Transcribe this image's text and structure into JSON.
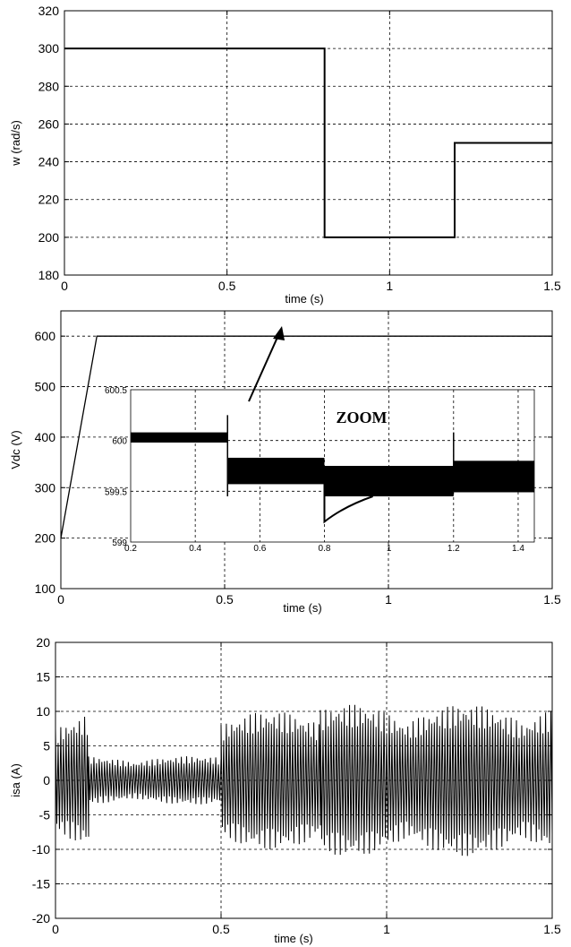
{
  "chart_data": [
    {
      "type": "line",
      "title": "",
      "xlabel": "time (s)",
      "ylabel": "w (rad/s)",
      "xlim": [
        0,
        1.5
      ],
      "ylim": [
        180,
        320
      ],
      "xticks": [
        "0",
        "0.5",
        "1",
        "1.5"
      ],
      "yticks": [
        "180",
        "200",
        "220",
        "240",
        "260",
        "280",
        "300",
        "320"
      ],
      "grid": true,
      "series": [
        {
          "x": [
            0,
            0.8,
            0.8,
            1.2,
            1.2,
            1.5
          ],
          "y": [
            300,
            300,
            200,
            200,
            250,
            250
          ]
        }
      ]
    },
    {
      "type": "line",
      "title": "",
      "xlabel": "time (s)",
      "ylabel": "Vdc (V)",
      "xlim": [
        0,
        1.5
      ],
      "ylim": [
        100,
        650
      ],
      "xticks": [
        "0",
        "0.5",
        "1",
        "1.5"
      ],
      "yticks": [
        "100",
        "200",
        "300",
        "400",
        "500",
        "600"
      ],
      "grid": true,
      "series": [
        {
          "x": [
            0,
            0.11,
            1.5
          ],
          "y": [
            200,
            600,
            600
          ]
        }
      ],
      "inset": {
        "annotation": "ZOOM",
        "xlim": [
          0.2,
          1.45
        ],
        "ylim": [
          599,
          600.5
        ],
        "xticks": [
          "0.2",
          "0.4",
          "0.6",
          "0.8",
          "1",
          "1.2",
          "1.4"
        ],
        "yticks": [
          "599",
          "599.5",
          "600",
          "600.5"
        ],
        "segments": [
          {
            "x": [
              0.2,
              0.5
            ],
            "low": 599.98,
            "high": 600.08
          },
          {
            "x": [
              0.5,
              0.8
            ],
            "low": 599.57,
            "high": 599.83
          },
          {
            "x": [
              0.8,
              1.2
            ],
            "low": 599.45,
            "high": 599.75
          },
          {
            "x": [
              1.2,
              1.45
            ],
            "low": 599.49,
            "high": 599.8
          }
        ]
      }
    },
    {
      "type": "line",
      "title": "",
      "xlabel": "time (s)",
      "ylabel": "isa (A)",
      "xlim": [
        0,
        1.5
      ],
      "ylim": [
        -20,
        20
      ],
      "xticks": [
        "0",
        "0.5",
        "1",
        "1.5"
      ],
      "yticks": [
        "-20",
        "-15",
        "-10",
        "-5",
        "0",
        "5",
        "10",
        "15",
        "20"
      ],
      "grid": true,
      "series": [
        {
          "description_segments": [
            {
              "x": [
                0,
                0.1
              ],
              "amplitude": 10
            },
            {
              "x": [
                0.1,
                0.5
              ],
              "amplitude": 3.5
            },
            {
              "x": [
                0.5,
                0.8
              ],
              "amplitude": 10
            },
            {
              "x": [
                0.8,
                1.5
              ],
              "amplitude": 11
            }
          ]
        }
      ]
    }
  ]
}
